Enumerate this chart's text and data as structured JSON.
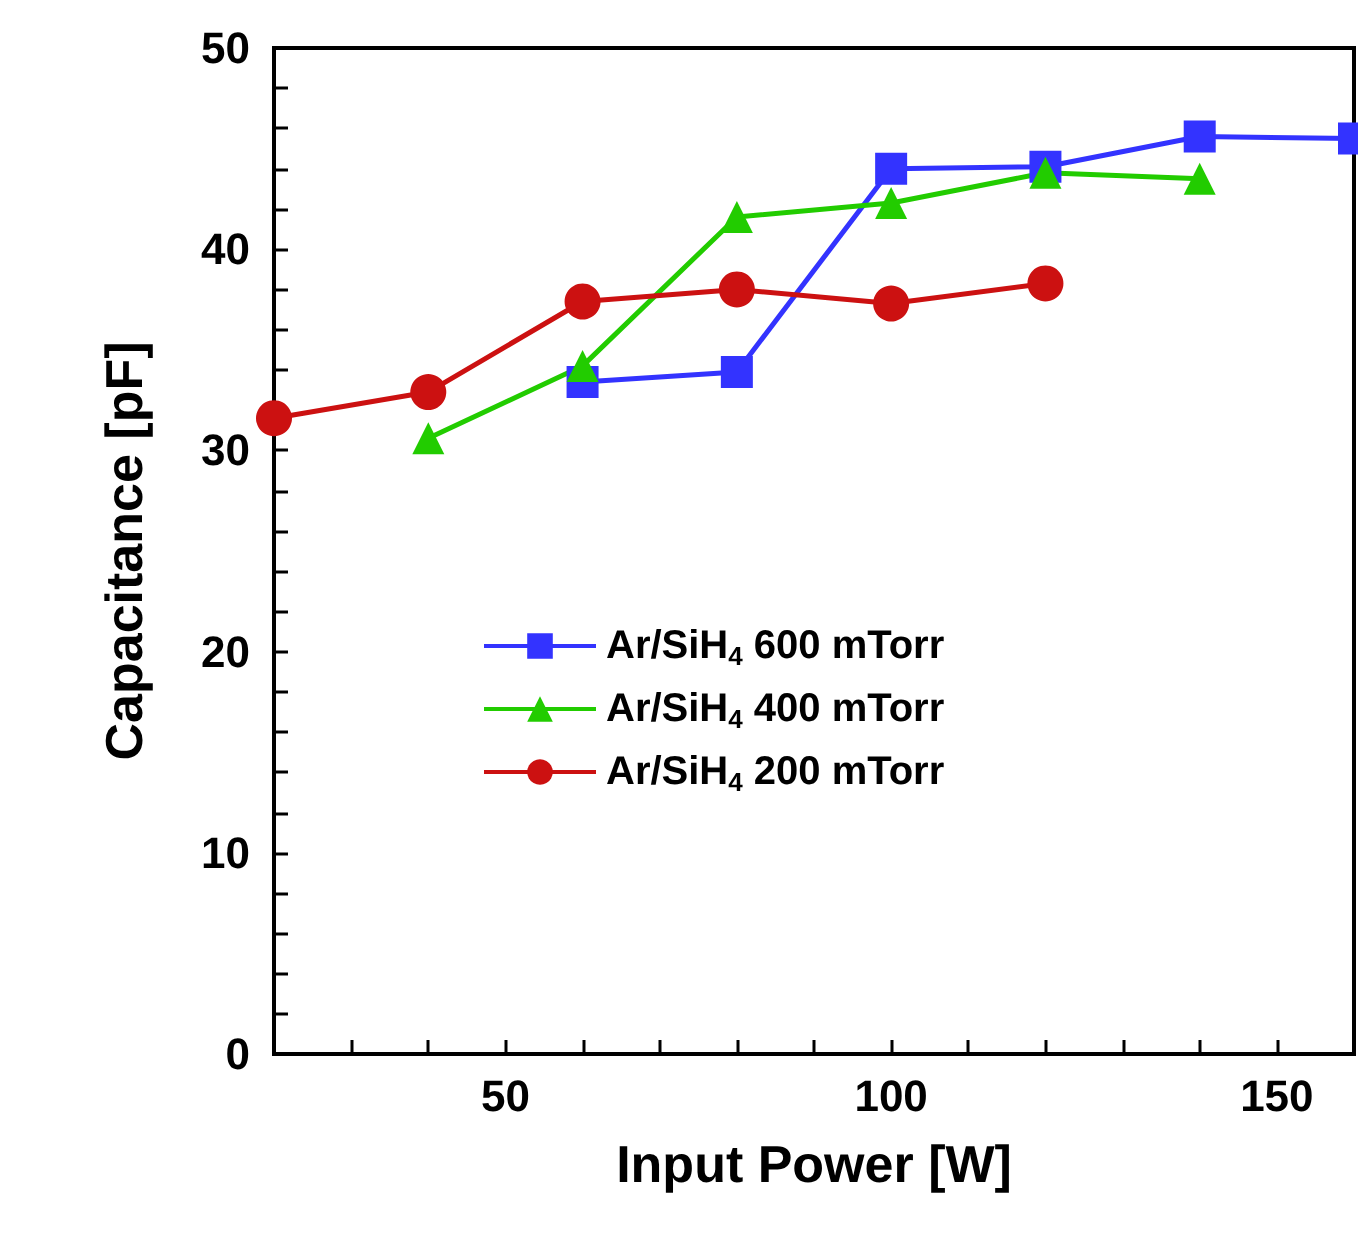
{
  "chart_data": {
    "type": "line",
    "xlabel": "Input Power [W]",
    "ylabel": "Capacitance [pF]",
    "xlim": [
      20,
      160
    ],
    "xticks": [
      {
        "value": 30,
        "label": null
      },
      {
        "value": 40,
        "label": null
      },
      50,
      {
        "value": 60,
        "label": null
      },
      {
        "value": 70,
        "label": null
      },
      {
        "value": 80,
        "label": null
      },
      {
        "value": 90,
        "label": null
      },
      100,
      {
        "value": 110,
        "label": null
      },
      {
        "value": 120,
        "label": null
      },
      {
        "value": 130,
        "label": null
      },
      {
        "value": 140,
        "label": null
      },
      150
    ],
    "ylim": [
      0,
      50
    ],
    "yticks": [
      0,
      {
        "value": 2,
        "label": null
      },
      {
        "value": 4,
        "label": null
      },
      {
        "value": 6,
        "label": null
      },
      {
        "value": 8,
        "label": null
      },
      10,
      {
        "value": 12,
        "label": null
      },
      {
        "value": 14,
        "label": null
      },
      {
        "value": 16,
        "label": null
      },
      {
        "value": 18,
        "label": null
      },
      20,
      {
        "value": 22,
        "label": null
      },
      {
        "value": 24,
        "label": null
      },
      {
        "value": 26,
        "label": null
      },
      {
        "value": 28,
        "label": null
      },
      30,
      {
        "value": 32,
        "label": null
      },
      {
        "value": 34,
        "label": null
      },
      {
        "value": 36,
        "label": null
      },
      {
        "value": 38,
        "label": null
      },
      40,
      {
        "value": 42,
        "label": null
      },
      {
        "value": 44,
        "label": null
      },
      {
        "value": 46,
        "label": null
      },
      {
        "value": 48,
        "label": null
      },
      50
    ],
    "grid": false,
    "legend": "center",
    "line_style": "solid",
    "series": [
      {
        "name": "Ar/SiH$_{4}$ 600 mTorr",
        "color": "#3333ff",
        "marker": "square",
        "x": [
          60,
          80,
          100,
          120,
          140,
          160
        ],
        "values": [
          33.4,
          33.9,
          44.0,
          44.1,
          45.6,
          45.5
        ]
      },
      {
        "name": "Ar/SiH$_{4}$ 400 mTorr",
        "color": "#22cc00",
        "marker": "triangle",
        "x": [
          40,
          60,
          80,
          100,
          120,
          140
        ],
        "values": [
          30.6,
          34.2,
          41.6,
          42.3,
          43.8,
          43.5
        ]
      },
      {
        "name": "Ar/SiH$_{4}$ 200 mTorr",
        "color": "#cc1111",
        "marker": "circle",
        "x": [
          20,
          40,
          60,
          80,
          100,
          120
        ],
        "values": [
          31.6,
          32.9,
          37.4,
          38.0,
          37.3,
          38.3
        ]
      }
    ]
  }
}
